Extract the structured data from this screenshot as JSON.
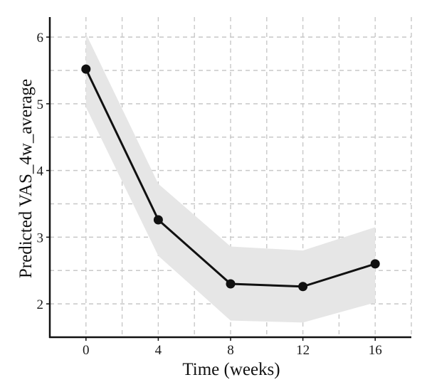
{
  "chart_data": {
    "type": "line",
    "title": "",
    "xlabel": "Time (weeks)",
    "ylabel": "Predicted VAS_4w_average",
    "x": [
      0,
      4,
      8,
      12,
      16
    ],
    "xticks": [
      "0",
      "4",
      "8",
      "12",
      "16"
    ],
    "yticks": [
      "2",
      "3",
      "4",
      "5",
      "6"
    ],
    "xlim": [
      -2,
      18
    ],
    "ylim": [
      1.5,
      6.3
    ],
    "grid": true,
    "series": [
      {
        "values": [
          5.52,
          3.26,
          2.3,
          2.26,
          2.6
        ],
        "ci_lower": [
          4.95,
          2.72,
          1.75,
          1.72,
          2.02
        ],
        "ci_upper": [
          6.05,
          3.8,
          2.86,
          2.8,
          3.15
        ]
      }
    ],
    "colors": {
      "line": "#111111",
      "band": "#e6e6e6",
      "grid": "#c8c8c8",
      "axis": "#111111"
    }
  }
}
